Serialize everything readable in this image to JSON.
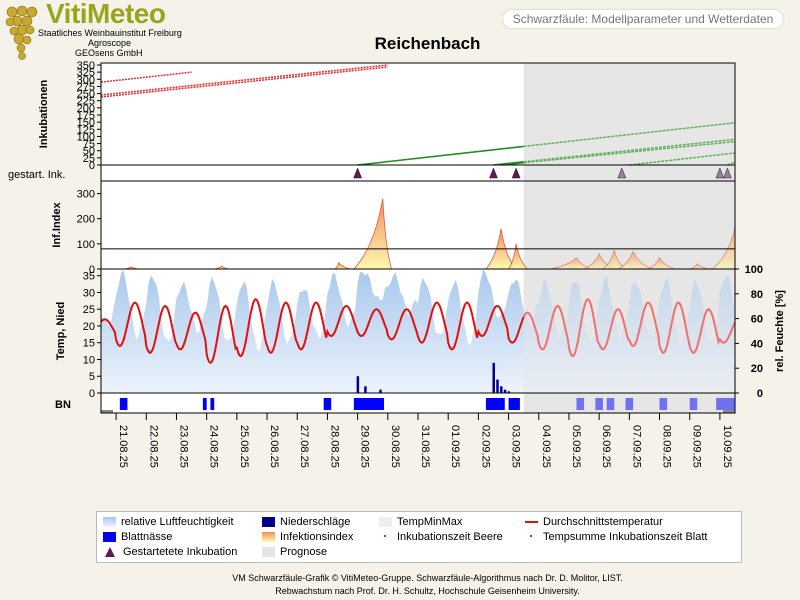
{
  "header": {
    "brand": "VitiMeteo",
    "org_line1": "Staatliches Weinbauinstitut Freiburg",
    "org_line2": "Agroscope",
    "org_line3": "GEOsens GmbH",
    "subtitle_box": "Schwarzfäule: Modellparameter und Wetterdaten"
  },
  "colors": {
    "rh_fill": "#a8c8ec",
    "leafwet": "#0000ff",
    "precip": "#00008b",
    "temp": "#e01010",
    "temp_forecast": "#f07070",
    "incub_leaf": "#228b22",
    "incub_berry": "#e03030",
    "forecast_bg": "#e6e6e6",
    "infection_top": "#f09060",
    "infection_bottom": "#fff8b0"
  },
  "chart_data": {
    "title": "Reichenbach",
    "type": "line",
    "x_ticks": [
      "21.08.25",
      "22.08.25",
      "23.08.25",
      "24.08.25",
      "25.08.25",
      "26.08.25",
      "27.08.25",
      "28.08.25",
      "29.08.25",
      "30.08.25",
      "31.08.25",
      "01.09.25",
      "02.09.25",
      "03.09.25",
      "04.09.25",
      "05.09.25",
      "06.09.25",
      "07.09.25",
      "08.09.25",
      "09.09.25",
      "10.09.25"
    ],
    "x_range": [
      "20.08.25 12:00",
      "10.09.25 12:00"
    ],
    "forecast_start": "03.09.25 12:00",
    "panels": {
      "incubation": {
        "ylabel": "Inkubationen",
        "ylim": [
          0,
          350
        ],
        "yticks": [
          "0",
          "25",
          "50",
          "75",
          "100",
          "125",
          "150",
          "175",
          "200",
          "225",
          "250",
          "275",
          "300",
          "325",
          "350"
        ],
        "berry_series": [
          {
            "start": "20.08.25 12:00",
            "end": "23.08.25 12:00",
            "y_start": 290,
            "y_end": 325
          },
          {
            "start": "20.08.25 12:00",
            "end": "30.08.25 00:00",
            "y_start": 245,
            "y_end": 350
          },
          {
            "start": "20.08.25 12:00",
            "end": "30.08.25 00:00",
            "y_start": 238,
            "y_end": 343
          }
        ],
        "leaf_series": [
          {
            "start": "29.08.25 00:00",
            "end": "10.09.25 12:00",
            "y_start": 0,
            "y_end": 148
          },
          {
            "start": "02.09.25 12:00",
            "end": "10.09.25 12:00",
            "y_start": 0,
            "y_end": 90
          },
          {
            "start": "02.09.25 18:00",
            "end": "10.09.25 12:00",
            "y_start": 0,
            "y_end": 82
          },
          {
            "start": "07.09.25 00:00",
            "end": "10.09.25 12:00",
            "y_start": 0,
            "y_end": 42
          },
          {
            "start": "10.09.25 06:00",
            "end": "10.09.25 12:00",
            "y_start": 0,
            "y_end": 10
          }
        ]
      },
      "started_incubations": {
        "label": "gestart. Ink.",
        "markers": [
          "29.08.25 00:00",
          "02.09.25 12:00",
          "03.09.25 06:00",
          "06.09.25 18:00",
          "10.09.25 00:00",
          "10.09.25 06:00"
        ]
      },
      "infection_index": {
        "ylabel": "Inf.Index",
        "ylim": [
          0,
          350
        ],
        "yticks": [
          "0",
          "100",
          "200",
          "300"
        ],
        "threshold": 80,
        "peaks": [
          {
            "start": "21.08.25 06:00",
            "peak": "21.08.25 12:00",
            "end": "21.08.25 18:00",
            "value": 8
          },
          {
            "start": "24.08.25 06:00",
            "peak": "24.08.25 12:00",
            "end": "24.08.25 18:00",
            "value": 12
          },
          {
            "start": "28.08.25 06:00",
            "peak": "28.08.25 09:00",
            "end": "28.08.25 18:00",
            "value": 25
          },
          {
            "start": "28.08.25 21:00",
            "peak": "29.08.25 20:00",
            "end": "30.08.25 03:00",
            "value": 280
          },
          {
            "start": "02.09.25 06:00",
            "peak": "02.09.25 18:00",
            "end": "03.09.25 06:00",
            "value": 160
          },
          {
            "start": "03.09.25 00:00",
            "peak": "03.09.25 06:00",
            "end": "03.09.25 15:00",
            "value": 100
          },
          {
            "start": "04.09.25 09:00",
            "peak": "05.09.25 06:00",
            "end": "05.09.25 18:00",
            "value": 45
          },
          {
            "start": "05.09.25 12:00",
            "peak": "06.09.25 00:00",
            "end": "06.09.25 12:00",
            "value": 60
          },
          {
            "start": "06.09.25 03:00",
            "peak": "06.09.25 12:00",
            "end": "06.09.25 21:00",
            "value": 75
          },
          {
            "start": "06.09.25 15:00",
            "peak": "07.09.25 03:00",
            "end": "07.09.25 18:00",
            "value": 70
          },
          {
            "start": "07.09.25 15:00",
            "peak": "08.09.25 00:00",
            "end": "08.09.25 12:00",
            "value": 45
          },
          {
            "start": "09.09.25 00:00",
            "peak": "09.09.25 06:00",
            "end": "09.09.25 15:00",
            "value": 20
          },
          {
            "start": "09.09.25 18:00",
            "peak": "10.09.25 12:00",
            "end": "10.09.25 12:00",
            "value": 165
          }
        ]
      },
      "weather": {
        "ylabel_left": "Temp, Nied",
        "ylim_left": [
          0,
          37
        ],
        "yticks_left": [
          "0",
          "5",
          "10",
          "15",
          "20",
          "25",
          "30",
          "35"
        ],
        "ylabel_right": "rel. Feuchte [%]",
        "ylim_right": [
          0,
          100
        ],
        "yticks_right": [
          "0",
          "20",
          "40",
          "60",
          "80",
          "100"
        ],
        "temp_daily": [
          {
            "day": "20.08.25",
            "min": 17,
            "max": 22
          },
          {
            "day": "21.08.25",
            "min": 14,
            "max": 27
          },
          {
            "day": "22.08.25",
            "min": 12,
            "max": 26
          },
          {
            "day": "23.08.25",
            "min": 13,
            "max": 24
          },
          {
            "day": "24.08.25",
            "min": 9,
            "max": 26
          },
          {
            "day": "25.08.25",
            "min": 11,
            "max": 28
          },
          {
            "day": "26.08.25",
            "min": 12,
            "max": 27
          },
          {
            "day": "27.08.25",
            "min": 13,
            "max": 27
          },
          {
            "day": "28.08.25",
            "min": 17,
            "max": 26
          },
          {
            "day": "29.08.25",
            "min": 17,
            "max": 25
          },
          {
            "day": "30.08.25",
            "min": 16,
            "max": 25
          },
          {
            "day": "31.08.25",
            "min": 15,
            "max": 27
          },
          {
            "day": "01.09.25",
            "min": 13,
            "max": 27
          },
          {
            "day": "02.09.25",
            "min": 17,
            "max": 26
          },
          {
            "day": "03.09.25",
            "min": 15,
            "max": 24
          },
          {
            "day": "04.09.25",
            "min": 13,
            "max": 26
          },
          {
            "day": "05.09.25",
            "min": 11,
            "max": 28
          },
          {
            "day": "06.09.25",
            "min": 13,
            "max": 25
          },
          {
            "day": "07.09.25",
            "min": 14,
            "max": 27
          },
          {
            "day": "08.09.25",
            "min": 12,
            "max": 27
          },
          {
            "day": "09.09.25",
            "min": 12,
            "max": 25
          },
          {
            "day": "10.09.25",
            "min": 15,
            "max": 22
          }
        ],
        "rh_daily": [
          {
            "day": "20.08.25",
            "min": 55,
            "max": 85
          },
          {
            "day": "21.08.25",
            "min": 45,
            "max": 97
          },
          {
            "day": "22.08.25",
            "min": 40,
            "max": 95
          },
          {
            "day": "23.08.25",
            "min": 50,
            "max": 88
          },
          {
            "day": "24.08.25",
            "min": 40,
            "max": 92
          },
          {
            "day": "25.08.25",
            "min": 35,
            "max": 90
          },
          {
            "day": "26.08.25",
            "min": 40,
            "max": 90
          },
          {
            "day": "27.08.25",
            "min": 45,
            "max": 85
          },
          {
            "day": "28.08.25",
            "min": 55,
            "max": 95
          },
          {
            "day": "29.08.25",
            "min": 75,
            "max": 98
          },
          {
            "day": "30.08.25",
            "min": 65,
            "max": 95
          },
          {
            "day": "31.08.25",
            "min": 45,
            "max": 92
          },
          {
            "day": "01.09.25",
            "min": 40,
            "max": 90
          },
          {
            "day": "02.09.25",
            "min": 60,
            "max": 98
          },
          {
            "day": "03.09.25",
            "min": 55,
            "max": 92
          },
          {
            "day": "04.09.25",
            "min": 45,
            "max": 90
          },
          {
            "day": "05.09.25",
            "min": 40,
            "max": 92
          },
          {
            "day": "06.09.25",
            "min": 45,
            "max": 92
          },
          {
            "day": "07.09.25",
            "min": 45,
            "max": 90
          },
          {
            "day": "08.09.25",
            "min": 40,
            "max": 92
          },
          {
            "day": "09.09.25",
            "min": 40,
            "max": 90
          },
          {
            "day": "10.09.25",
            "min": 50,
            "max": 95
          }
        ],
        "precipitation": [
          {
            "t": "29.08.25 00:00",
            "v": 5
          },
          {
            "t": "29.08.25 06:00",
            "v": 2
          },
          {
            "t": "29.08.25 18:00",
            "v": 1
          },
          {
            "t": "02.09.25 12:00",
            "v": 9
          },
          {
            "t": "02.09.25 15:00",
            "v": 4
          },
          {
            "t": "02.09.25 18:00",
            "v": 2
          },
          {
            "t": "02.09.25 21:00",
            "v": 1
          },
          {
            "t": "03.09.25 00:00",
            "v": 0.5
          }
        ]
      },
      "leaf_wetness": {
        "label": "BN",
        "periods": [
          {
            "start": "21.08.25 03:00",
            "end": "21.08.25 09:00"
          },
          {
            "start": "23.08.25 21:00",
            "end": "24.08.25 00:00"
          },
          {
            "start": "24.08.25 03:00",
            "end": "24.08.25 06:00"
          },
          {
            "start": "27.08.25 21:00",
            "end": "28.08.25 03:00"
          },
          {
            "start": "28.08.25 21:00",
            "end": "29.08.25 21:00"
          },
          {
            "start": "02.09.25 06:00",
            "end": "02.09.25 21:00"
          },
          {
            "start": "03.09.25 00:00",
            "end": "03.09.25 09:00"
          },
          {
            "start": "05.09.25 06:00",
            "end": "05.09.25 12:00"
          },
          {
            "start": "05.09.25 21:00",
            "end": "06.09.25 03:00"
          },
          {
            "start": "06.09.25 06:00",
            "end": "06.09.25 12:00"
          },
          {
            "start": "06.09.25 21:00",
            "end": "07.09.25 03:00"
          },
          {
            "start": "08.09.25 00:00",
            "end": "08.09.25 06:00"
          },
          {
            "start": "09.09.25 00:00",
            "end": "09.09.25 06:00"
          },
          {
            "start": "09.09.25 21:00",
            "end": "10.09.25 12:00"
          }
        ]
      }
    },
    "legend": [
      {
        "key": "rh",
        "label": "relative Luftfeuchtigkeit"
      },
      {
        "key": "precip",
        "label": "Niederschläge"
      },
      {
        "key": "tempminmax",
        "label": "TempMinMax"
      },
      {
        "key": "tavg",
        "label": "Durchschnittstemperatur"
      },
      {
        "key": "leafwet",
        "label": "Blattnässe"
      },
      {
        "key": "infidx",
        "label": "Infektionsindex"
      },
      {
        "key": "incberry",
        "label": "Inkubationszeit Beere"
      },
      {
        "key": "incleaf",
        "label": "Tempsumme Inkubationszeit Blatt"
      },
      {
        "key": "started",
        "label": "Gestartetete Inkubation"
      },
      {
        "key": "forecast",
        "label": "Prognose"
      }
    ]
  },
  "footer": {
    "line1": "VM Schwarzfäule-Grafik © VitiMeteo-Gruppe. Schwarzfäule-Algorithmus nach Dr. D. Molitor, LIST.",
    "line2": "Rebwachstum nach Prof. Dr. H. Schultz, Hochschule Geisenheim University."
  }
}
